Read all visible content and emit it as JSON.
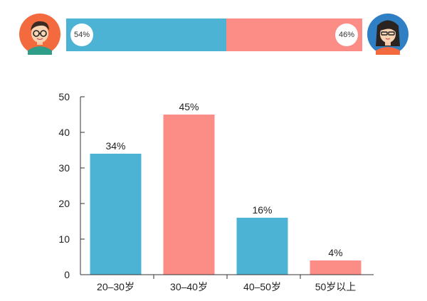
{
  "gender": {
    "male_percent": 54,
    "male_label": "54%",
    "female_percent": 46,
    "female_label": "46%",
    "male_color": "#4db3d4",
    "female_color": "#fc8d86"
  },
  "icons": {
    "male": "male-avatar-icon",
    "female": "female-avatar-icon"
  },
  "chart_data": {
    "type": "bar",
    "categories": [
      "20–30岁",
      "30–40岁",
      "40–50岁",
      "50岁以上"
    ],
    "values": [
      34,
      45,
      16,
      4
    ],
    "value_labels": [
      "34%",
      "45%",
      "16%",
      "4%"
    ],
    "colors": [
      "#4db3d4",
      "#fc8d86",
      "#4db3d4",
      "#fc8d86"
    ],
    "ylim": [
      0,
      50
    ],
    "yticks": [
      0,
      10,
      20,
      30,
      40,
      50
    ],
    "grid": false,
    "title": "",
    "xlabel": "",
    "ylabel": ""
  }
}
